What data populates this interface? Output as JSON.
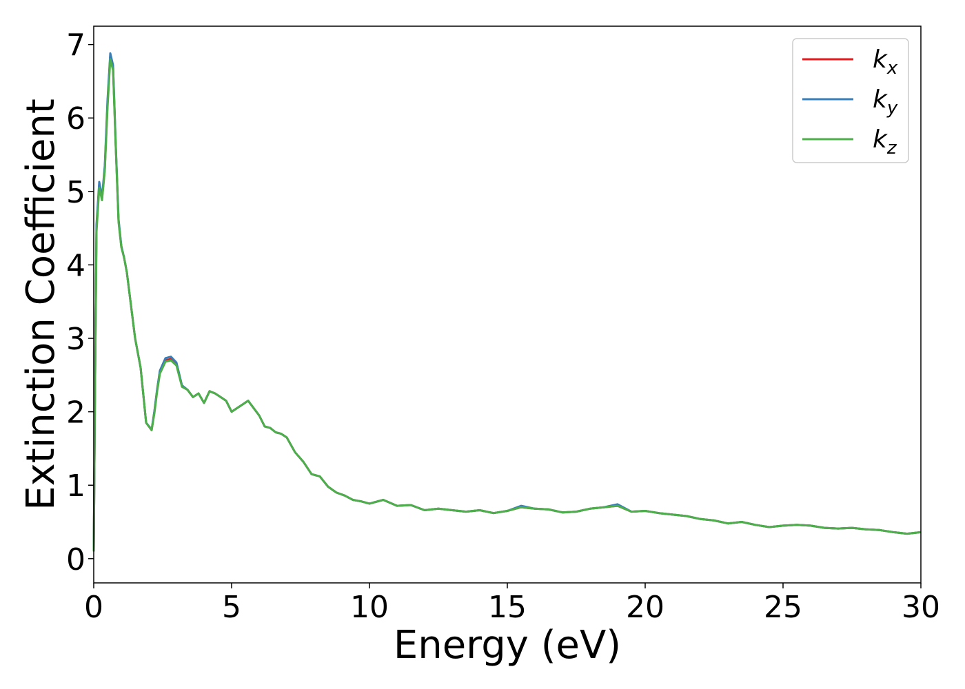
{
  "chart_data": {
    "type": "line",
    "xlabel": "Energy (eV)",
    "ylabel": "Extinction Coefficient",
    "xlim": [
      0,
      30
    ],
    "ylim": [
      -0.33,
      7.25
    ],
    "xticks": [
      0,
      5,
      10,
      15,
      20,
      25,
      30
    ],
    "yticks": [
      0,
      1,
      2,
      3,
      4,
      5,
      6,
      7
    ],
    "grid": false,
    "legend_position": "top-right",
    "series": [
      {
        "name": "k",
        "subscript": "x",
        "color": "#e41a1c",
        "x": [
          0,
          0.05,
          0.1,
          0.2,
          0.3,
          0.4,
          0.5,
          0.6,
          0.7,
          0.8,
          0.9,
          1.0,
          1.1,
          1.2,
          1.3,
          1.5,
          1.7,
          1.9,
          2.1,
          2.2,
          2.3,
          2.4,
          2.6,
          2.8,
          3.0,
          3.2,
          3.4,
          3.6,
          3.8,
          4.0,
          4.2,
          4.4,
          4.6,
          4.8,
          5.0,
          5.2,
          5.4,
          5.6,
          5.8,
          6.0,
          6.2,
          6.4,
          6.6,
          6.8,
          7.0,
          7.3,
          7.6,
          7.9,
          8.2,
          8.5,
          8.8,
          9.1,
          9.4,
          9.7,
          10.0,
          10.5,
          11.0,
          11.5,
          12.0,
          12.5,
          13.0,
          13.5,
          14.0,
          14.5,
          15.0,
          15.5,
          16.0,
          16.5,
          17.0,
          17.5,
          18.0,
          18.5,
          19.0,
          19.5,
          20.0,
          20.5,
          21.0,
          21.5,
          22.0,
          22.5,
          23.0,
          23.5,
          24.0,
          24.5,
          25.0,
          25.5,
          26.0,
          26.5,
          27.0,
          27.5,
          28.0,
          28.5,
          29.0,
          29.5,
          30.0
        ],
        "y": [
          0.1,
          2.5,
          4.5,
          5.1,
          4.9,
          5.3,
          6.2,
          6.85,
          6.7,
          5.6,
          4.6,
          4.25,
          4.1,
          3.9,
          3.6,
          3.0,
          2.6,
          1.85,
          1.75,
          2.0,
          2.3,
          2.55,
          2.7,
          2.72,
          2.65,
          2.35,
          2.3,
          2.2,
          2.25,
          2.12,
          2.28,
          2.25,
          2.2,
          2.15,
          2.0,
          2.05,
          2.1,
          2.15,
          2.05,
          1.95,
          1.8,
          1.78,
          1.72,
          1.7,
          1.65,
          1.45,
          1.32,
          1.15,
          1.12,
          0.98,
          0.9,
          0.86,
          0.8,
          0.78,
          0.75,
          0.8,
          0.72,
          0.73,
          0.66,
          0.68,
          0.66,
          0.64,
          0.66,
          0.62,
          0.65,
          0.7,
          0.68,
          0.67,
          0.63,
          0.64,
          0.68,
          0.7,
          0.72,
          0.64,
          0.65,
          0.62,
          0.6,
          0.58,
          0.54,
          0.52,
          0.48,
          0.5,
          0.46,
          0.43,
          0.45,
          0.46,
          0.45,
          0.42,
          0.41,
          0.42,
          0.4,
          0.39,
          0.36,
          0.34,
          0.36
        ]
      },
      {
        "name": "k",
        "subscript": "y",
        "color": "#377eb8",
        "x": [
          0,
          0.05,
          0.1,
          0.2,
          0.3,
          0.4,
          0.5,
          0.6,
          0.7,
          0.8,
          0.9,
          1.0,
          1.1,
          1.2,
          1.3,
          1.5,
          1.7,
          1.9,
          2.1,
          2.2,
          2.3,
          2.4,
          2.6,
          2.8,
          3.0,
          3.2,
          3.4,
          3.6,
          3.8,
          4.0,
          4.2,
          4.4,
          4.6,
          4.8,
          5.0,
          5.2,
          5.4,
          5.6,
          5.8,
          6.0,
          6.2,
          6.4,
          6.6,
          6.8,
          7.0,
          7.3,
          7.6,
          7.9,
          8.2,
          8.5,
          8.8,
          9.1,
          9.4,
          9.7,
          10.0,
          10.5,
          11.0,
          11.5,
          12.0,
          12.5,
          13.0,
          13.5,
          14.0,
          14.5,
          15.0,
          15.5,
          16.0,
          16.5,
          17.0,
          17.5,
          18.0,
          18.5,
          19.0,
          19.5,
          20.0,
          20.5,
          21.0,
          21.5,
          22.0,
          22.5,
          23.0,
          23.5,
          24.0,
          24.5,
          25.0,
          25.5,
          26.0,
          26.5,
          27.0,
          27.5,
          28.0,
          28.5,
          29.0,
          29.5,
          30.0
        ],
        "y": [
          0.1,
          2.5,
          4.55,
          5.13,
          4.92,
          5.35,
          6.25,
          6.88,
          6.72,
          5.62,
          4.62,
          4.26,
          4.1,
          3.9,
          3.6,
          3.0,
          2.6,
          1.85,
          1.76,
          2.01,
          2.31,
          2.56,
          2.73,
          2.75,
          2.67,
          2.36,
          2.3,
          2.2,
          2.25,
          2.12,
          2.28,
          2.25,
          2.2,
          2.15,
          2.0,
          2.05,
          2.1,
          2.15,
          2.05,
          1.95,
          1.8,
          1.78,
          1.72,
          1.7,
          1.65,
          1.45,
          1.32,
          1.15,
          1.12,
          0.98,
          0.9,
          0.86,
          0.8,
          0.78,
          0.75,
          0.8,
          0.72,
          0.73,
          0.66,
          0.68,
          0.66,
          0.64,
          0.66,
          0.62,
          0.65,
          0.72,
          0.68,
          0.67,
          0.63,
          0.64,
          0.68,
          0.7,
          0.74,
          0.64,
          0.65,
          0.62,
          0.6,
          0.58,
          0.54,
          0.52,
          0.48,
          0.5,
          0.46,
          0.43,
          0.45,
          0.46,
          0.45,
          0.42,
          0.41,
          0.42,
          0.4,
          0.39,
          0.36,
          0.34,
          0.36
        ]
      },
      {
        "name": "k",
        "subscript": "z",
        "color": "#4daf4a",
        "x": [
          0,
          0.05,
          0.1,
          0.2,
          0.3,
          0.4,
          0.5,
          0.6,
          0.7,
          0.8,
          0.9,
          1.0,
          1.1,
          1.2,
          1.3,
          1.5,
          1.7,
          1.9,
          2.1,
          2.2,
          2.3,
          2.4,
          2.6,
          2.8,
          3.0,
          3.2,
          3.4,
          3.6,
          3.8,
          4.0,
          4.2,
          4.4,
          4.6,
          4.8,
          5.0,
          5.2,
          5.4,
          5.6,
          5.8,
          6.0,
          6.2,
          6.4,
          6.6,
          6.8,
          7.0,
          7.3,
          7.6,
          7.9,
          8.2,
          8.5,
          8.8,
          9.1,
          9.4,
          9.7,
          10.0,
          10.5,
          11.0,
          11.5,
          12.0,
          12.5,
          13.0,
          13.5,
          14.0,
          14.5,
          15.0,
          15.5,
          16.0,
          16.5,
          17.0,
          17.5,
          18.0,
          18.5,
          19.0,
          19.5,
          20.0,
          20.5,
          21.0,
          21.5,
          22.0,
          22.5,
          23.0,
          23.5,
          24.0,
          24.5,
          25.0,
          25.5,
          26.0,
          26.5,
          27.0,
          27.5,
          28.0,
          28.5,
          29.0,
          29.5,
          30.0
        ],
        "y": [
          0.1,
          2.45,
          4.45,
          5.05,
          4.88,
          5.28,
          6.15,
          6.8,
          6.65,
          5.58,
          4.58,
          4.24,
          4.1,
          3.9,
          3.6,
          3.0,
          2.6,
          1.85,
          1.75,
          1.98,
          2.28,
          2.52,
          2.68,
          2.7,
          2.63,
          2.34,
          2.3,
          2.2,
          2.25,
          2.12,
          2.28,
          2.25,
          2.2,
          2.15,
          2.0,
          2.05,
          2.1,
          2.15,
          2.05,
          1.95,
          1.8,
          1.78,
          1.72,
          1.7,
          1.65,
          1.45,
          1.32,
          1.15,
          1.12,
          0.98,
          0.9,
          0.86,
          0.8,
          0.78,
          0.75,
          0.8,
          0.72,
          0.73,
          0.66,
          0.68,
          0.66,
          0.64,
          0.66,
          0.62,
          0.65,
          0.7,
          0.68,
          0.67,
          0.63,
          0.64,
          0.68,
          0.7,
          0.72,
          0.64,
          0.65,
          0.62,
          0.6,
          0.58,
          0.54,
          0.52,
          0.48,
          0.5,
          0.46,
          0.43,
          0.45,
          0.46,
          0.45,
          0.42,
          0.41,
          0.42,
          0.4,
          0.39,
          0.36,
          0.34,
          0.36
        ]
      }
    ]
  }
}
